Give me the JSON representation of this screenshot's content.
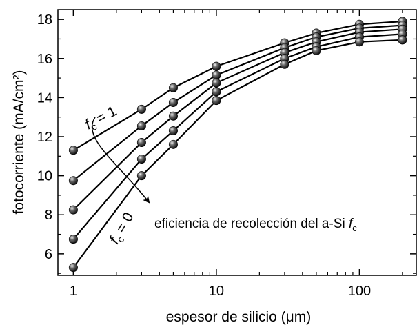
{
  "chart_data": {
    "type": "line",
    "xscale": "log",
    "xlim": [
      0.78,
      250
    ],
    "ylim": [
      4.9,
      18.5
    ],
    "xlabel": "espesor de silicio (μm)",
    "ylabel": "fotocorriente (mA/cm²)",
    "xticks": [
      1,
      10,
      100
    ],
    "xtick_labels": [
      "1",
      "10",
      "100"
    ],
    "yticks": [
      6,
      8,
      10,
      12,
      14,
      16,
      18
    ],
    "ytick_labels": [
      "6",
      "8",
      "10",
      "12",
      "14",
      "16",
      "18"
    ],
    "grid": false,
    "legend": "none",
    "x": [
      1,
      3,
      5,
      10,
      30,
      50,
      100,
      200
    ],
    "series": [
      {
        "values": [
          11.3,
          13.4,
          14.5,
          15.6,
          16.8,
          17.3,
          17.75,
          17.9
        ]
      },
      {
        "values": [
          9.75,
          12.55,
          13.75,
          15.15,
          16.55,
          17.1,
          17.55,
          17.7
        ]
      },
      {
        "values": [
          8.25,
          11.7,
          13.05,
          14.75,
          16.3,
          16.85,
          17.35,
          17.5
        ]
      },
      {
        "values": [
          6.75,
          10.85,
          12.3,
          14.3,
          16.0,
          16.6,
          17.1,
          17.25
        ]
      },
      {
        "values": [
          5.3,
          10.0,
          11.6,
          13.85,
          15.7,
          16.4,
          16.85,
          16.95
        ]
      }
    ],
    "annotations": {
      "top_label": "f",
      "top_label_sub": "c",
      "top_label_rest": " = 1",
      "bottom_label": "f",
      "bottom_label_sub": "c",
      "bottom_label_rest": " = 0",
      "arrow_text": "eficiencia de recolección del a-Si ",
      "arrow_text_italic": "f",
      "arrow_text_sub": "c"
    }
  }
}
